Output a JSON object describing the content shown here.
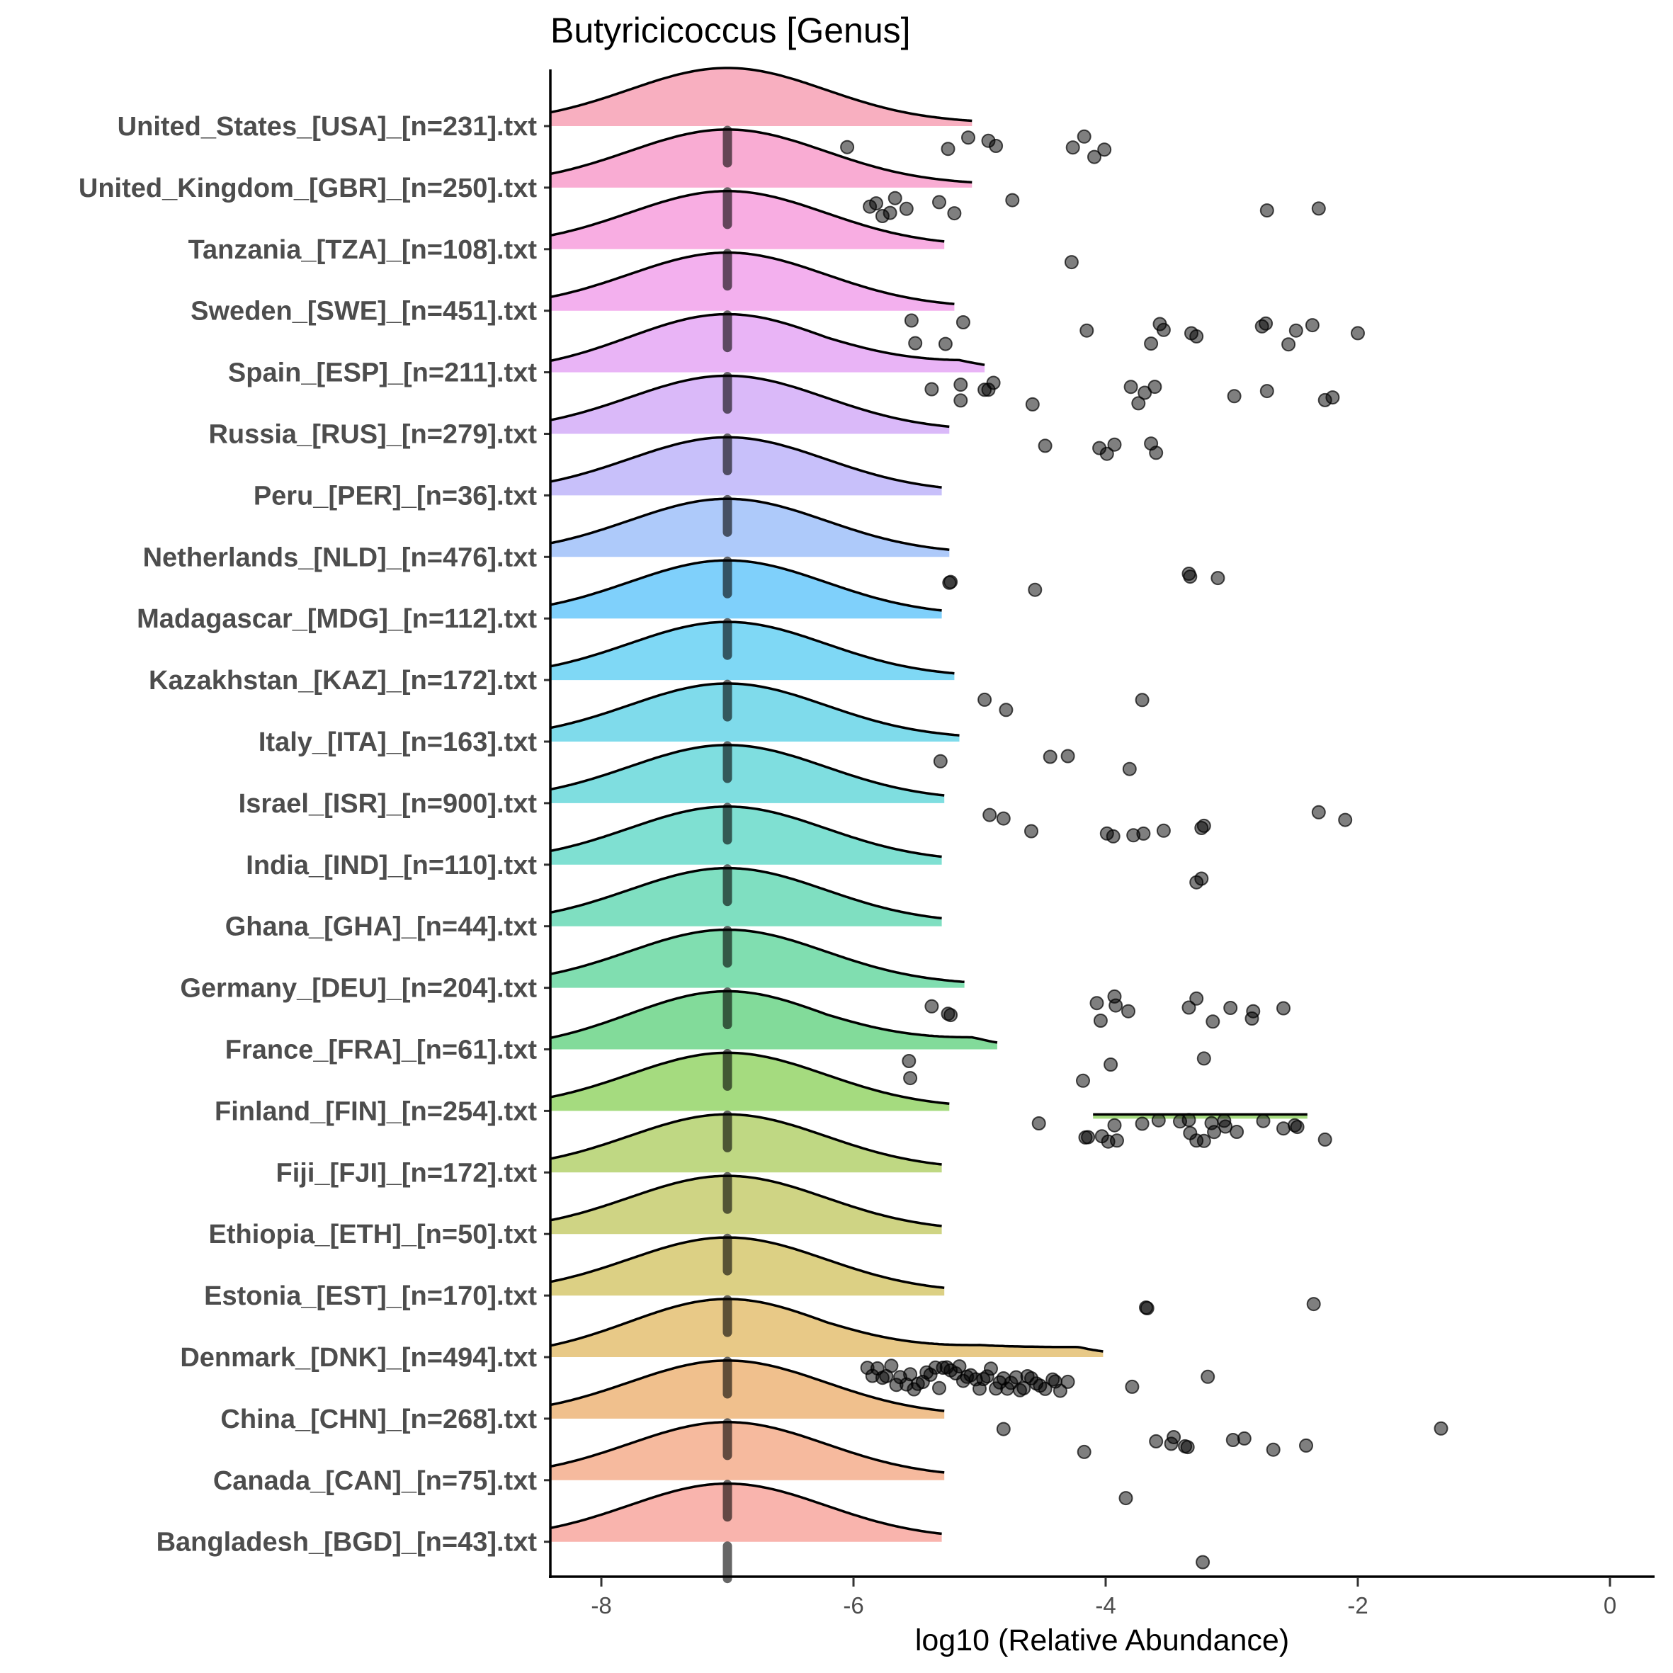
{
  "chart_data": {
    "type": "ridgeline",
    "title": "Butyricicoccus [Genus]",
    "xlabel": "log10 (Relative Abundance)",
    "ylabel": "",
    "xlim": [
      -8.4,
      0.4
    ],
    "x_ticks": [
      -8,
      -6,
      -4,
      -2,
      0
    ],
    "x_tick_labels": [
      "-8",
      "-6",
      "-4",
      "-2",
      "0"
    ],
    "grid": false,
    "legend": "none",
    "median_marker": -7,
    "groups": [
      {
        "label": "United_States_[USA]_[n=231].txt",
        "color": "#F8AFC0",
        "density_peak": -7.0,
        "density_max": -5.05,
        "points": [
          -6.05,
          -5.25,
          -5.09,
          -4.93,
          -4.87,
          -4.26,
          -4.17,
          -4.09,
          -4.01
        ]
      },
      {
        "label": "United_Kingdom_[GBR]_[n=250].txt",
        "color": "#F9ACD3",
        "density_peak": -7.0,
        "density_max": -5.05,
        "points": [
          -5.87,
          -5.82,
          -5.77,
          -5.71,
          -5.67,
          -5.58,
          -5.32,
          -5.2,
          -4.74,
          -2.72,
          -2.31
        ]
      },
      {
        "label": "Tanzania_[TZA]_[n=108].txt",
        "color": "#F8ADE2",
        "density_peak": -7.0,
        "density_max": -5.27,
        "points": [
          -4.27
        ]
      },
      {
        "label": "Sweden_[SWE]_[n=451].txt",
        "color": "#F3B0EE",
        "density_peak": -7.0,
        "density_max": -5.2,
        "points": [
          -5.54,
          -5.51,
          -5.27,
          -5.13,
          -4.15,
          -3.64,
          -3.57,
          -3.54,
          -3.32,
          -3.28,
          -2.76,
          -2.73,
          -2.55,
          -2.49,
          -2.36,
          -2.0
        ]
      },
      {
        "label": "Spain_[ESP]_[n=211].txt",
        "color": "#E9B4F6",
        "density_peak": -7.0,
        "density_max": -4.96,
        "points": [
          -5.38,
          -5.15,
          -5.15,
          -4.96,
          -4.93,
          -4.89,
          -4.58,
          -3.8,
          -3.74,
          -3.69,
          -3.61,
          -2.98,
          -2.72,
          -2.26,
          -2.2
        ]
      },
      {
        "label": "Russia_[RUS]_[n=279].txt",
        "color": "#DAB9F9",
        "density_peak": -7.0,
        "density_max": -5.23,
        "points": [
          -4.48,
          -4.05,
          -3.99,
          -3.93,
          -3.64,
          -3.6
        ]
      },
      {
        "label": "Peru_[PER]_[n=36].txt",
        "color": "#C8C0FA",
        "density_peak": -7.0,
        "density_max": -5.29,
        "points": []
      },
      {
        "label": "Netherlands_[NLD]_[n=476].txt",
        "color": "#AECAFA",
        "density_peak": -7.0,
        "density_max": -5.24,
        "points": [
          -5.24,
          -5.23,
          -4.56,
          -3.34,
          -3.33,
          -3.11
        ]
      },
      {
        "label": "Madagascar_[MDG]_[n=112].txt",
        "color": "#7FD0FB",
        "density_peak": -7.0,
        "density_max": -5.29,
        "points": []
      },
      {
        "label": "Kazakhstan_[KAZ]_[n=172].txt",
        "color": "#7FD8F5",
        "density_peak": -7.0,
        "density_max": -5.19,
        "points": [
          -4.96,
          -4.79,
          -3.71
        ]
      },
      {
        "label": "Italy_[ITA]_[n=163].txt",
        "color": "#7FDBEB",
        "density_peak": -7.0,
        "density_max": -5.16,
        "points": [
          -5.31,
          -4.44,
          -4.3,
          -3.81
        ]
      },
      {
        "label": "Israel_[ISR]_[n=900].txt",
        "color": "#7FDEE0",
        "density_peak": -7.0,
        "density_max": -5.27,
        "points": [
          -4.92,
          -4.81,
          -4.59,
          -3.99,
          -3.94,
          -3.78,
          -3.7,
          -3.54,
          -3.24,
          -3.22,
          -2.31,
          -2.1
        ]
      },
      {
        "label": "India_[IND]_[n=110].txt",
        "color": "#7FE0D2",
        "density_peak": -7.0,
        "density_max": -5.29,
        "points": [
          -3.28,
          -3.24
        ]
      },
      {
        "label": "Ghana_[GHA]_[n=44].txt",
        "color": "#7FDFC1",
        "density_peak": -7.0,
        "density_max": -5.29,
        "points": []
      },
      {
        "label": "Germany_[DEU]_[n=204].txt",
        "color": "#80DEB0",
        "density_peak": -7.0,
        "density_max": -5.12,
        "points": [
          -5.38,
          -5.25,
          -5.23,
          -4.07,
          -4.04,
          -3.93,
          -3.92,
          -3.82,
          -3.34,
          -3.28,
          -3.15,
          -3.01,
          -2.84,
          -2.83,
          -2.59
        ]
      },
      {
        "label": "France_[FRA]_[n=61].txt",
        "color": "#82DB9A",
        "density_peak": -7.0,
        "density_max": -4.86,
        "points": [
          -5.56,
          -5.55,
          -4.18,
          -3.96,
          -3.22
        ]
      },
      {
        "label": "Finland_[FIN]_[n=254].txt",
        "color": "#A5DB7F",
        "density_peak": -7.0,
        "density_max": -5.23,
        "secondary_density": [
          -4.1,
          -2.4
        ],
        "points": [
          -4.53,
          -4.16,
          -4.14,
          -4.03,
          -3.98,
          -3.93,
          -3.91,
          -3.71,
          -3.58,
          -3.41,
          -3.34,
          -3.33,
          -3.28,
          -3.22,
          -3.16,
          -3.14,
          -3.06,
          -3.05,
          -2.96,
          -2.75,
          -2.59,
          -2.5,
          -2.48,
          -2.26
        ]
      },
      {
        "label": "Fiji_[FJI]_[n=172].txt",
        "color": "#BFD883",
        "density_peak": -7.0,
        "density_max": -5.29,
        "points": []
      },
      {
        "label": "Ethiopia_[ETH]_[n=50].txt",
        "color": "#CFD484",
        "density_peak": -7.0,
        "density_max": -5.29,
        "points": []
      },
      {
        "label": "Estonia_[EST]_[n=170].txt",
        "color": "#DCD084",
        "density_peak": -7.0,
        "density_max": -5.27,
        "points": [
          -3.68,
          -3.67,
          -2.35
        ]
      },
      {
        "label": "Denmark_[DNK]_[n=494].txt",
        "color": "#E8C987",
        "density_peak": -7.0,
        "density_max": -4.01,
        "points": [
          -4.4,
          -5.89,
          -5.85,
          -5.81,
          -5.77,
          -5.74,
          -5.7,
          -5.66,
          -5.63,
          -5.58,
          -5.55,
          -5.52,
          -5.49,
          -5.45,
          -5.42,
          -5.39,
          -5.35,
          -5.32,
          -5.29,
          -5.26,
          -5.23,
          -5.19,
          -5.16,
          -5.13,
          -5.1,
          -5.07,
          -5.03,
          -5.0,
          -4.97,
          -4.94,
          -4.91,
          -4.87,
          -4.84,
          -4.81,
          -4.78,
          -4.75,
          -4.71,
          -4.68,
          -4.65,
          -4.62,
          -4.59,
          -4.55,
          -4.52,
          -4.48,
          -4.42,
          -4.36,
          -4.3,
          -3.79,
          -3.19
        ]
      },
      {
        "label": "China_[CHN]_[n=268].txt",
        "color": "#F0C08D",
        "density_peak": -7.0,
        "density_max": -5.27,
        "points": [
          -4.81,
          -4.17,
          -3.6,
          -3.48,
          -3.46,
          -3.37,
          -3.35,
          -2.99,
          -2.9,
          -2.67,
          -2.41,
          -1.34
        ]
      },
      {
        "label": "Canada_[CAN]_[n=75].txt",
        "color": "#F6BA9E",
        "density_peak": -7.0,
        "density_max": -5.27,
        "points": [
          -3.84
        ]
      },
      {
        "label": "Bangladesh_[BGD]_[n=43].txt",
        "color": "#F9B4AD",
        "density_peak": -7.0,
        "density_max": -5.29,
        "points": [
          -3.23
        ]
      }
    ]
  }
}
